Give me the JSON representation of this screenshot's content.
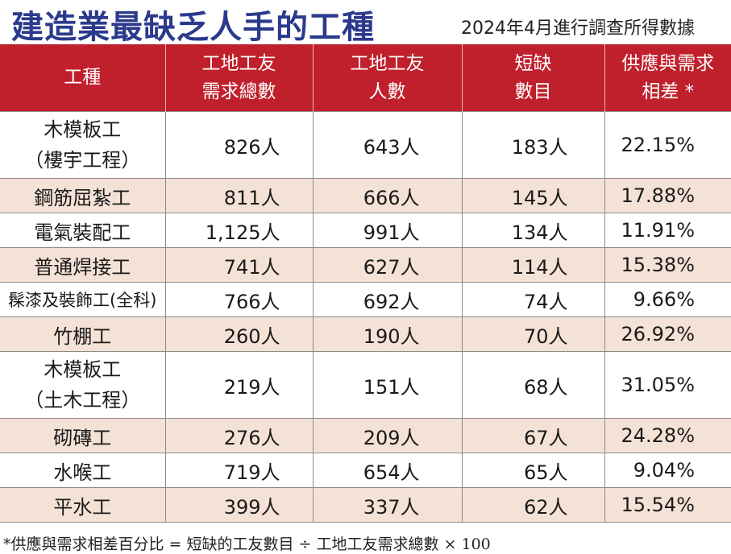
{
  "title": "建造業最缺乏人手的工種",
  "subtitle": "2024年4月進行調查所得數據",
  "table": {
    "headers": [
      {
        "line1": "工種",
        "line2": ""
      },
      {
        "line1": "工地工友",
        "line2": "需求總數"
      },
      {
        "line1": "工地工友",
        "line2": "人數"
      },
      {
        "line1": "短缺",
        "line2": "數目"
      },
      {
        "line1": "供應與需求",
        "line2": "相差 *"
      }
    ],
    "rows": [
      {
        "trade_line1": "木模板工",
        "trade_line2": "（樓宇工程）",
        "demand": "826人",
        "workers": "643人",
        "shortage": "183人",
        "gap": "22.15%"
      },
      {
        "trade_line1": "鋼筋屈紮工",
        "trade_line2": "",
        "demand": "811人",
        "workers": "666人",
        "shortage": "145人",
        "gap": "17.88%"
      },
      {
        "trade_line1": "電氣裝配工",
        "trade_line2": "",
        "demand": "1,125人",
        "workers": "991人",
        "shortage": "134人",
        "gap": "11.91%"
      },
      {
        "trade_line1": "普通焊接工",
        "trade_line2": "",
        "demand": "741人",
        "workers": "627人",
        "shortage": "114人",
        "gap": "15.38%"
      },
      {
        "trade_line1": "髹漆及裝飾工(全科)",
        "trade_line2": "",
        "demand": "766人",
        "workers": "692人",
        "shortage": "74人",
        "gap": "9.66%"
      },
      {
        "trade_line1": "竹棚工",
        "trade_line2": "",
        "demand": "260人",
        "workers": "190人",
        "shortage": "70人",
        "gap": "26.92%"
      },
      {
        "trade_line1": "木模板工",
        "trade_line2": "（土木工程）",
        "demand": "219人",
        "workers": "151人",
        "shortage": "68人",
        "gap": "31.05%"
      },
      {
        "trade_line1": "砌磚工",
        "trade_line2": "",
        "demand": "276人",
        "workers": "209人",
        "shortage": "67人",
        "gap": "24.28%"
      },
      {
        "trade_line1": "水喉工",
        "trade_line2": "",
        "demand": "719人",
        "workers": "654人",
        "shortage": "65人",
        "gap": "9.04%"
      },
      {
        "trade_line1": "平水工",
        "trade_line2": "",
        "demand": "399人",
        "workers": "337人",
        "shortage": "62人",
        "gap": "15.54%"
      }
    ]
  },
  "footnote": "*供應與需求相差百分比 = 短缺的工友數目 ÷ 工地工友需求總數 × 100",
  "colors": {
    "title": "#2b3a8c",
    "header_bg": "#c0202c",
    "shaded_row": "#f5e2d6"
  }
}
